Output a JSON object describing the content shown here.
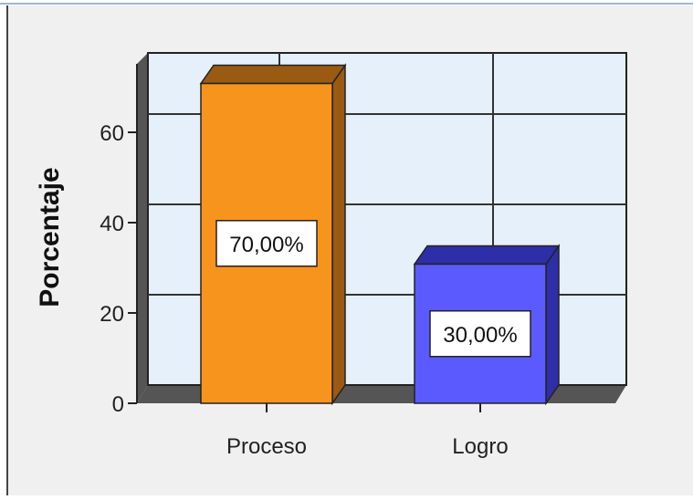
{
  "chart_data": {
    "type": "bar",
    "categories": [
      "Proceso",
      "Logro"
    ],
    "values": [
      70,
      30
    ],
    "data_labels": [
      "70,00%",
      "30,00%"
    ],
    "ylabel": "Porcentaje",
    "xlabel": "",
    "ylim": [
      0,
      70
    ],
    "yticks": [
      0,
      20,
      40,
      60
    ],
    "ytick_labels": [
      "0",
      "20",
      "40",
      "60"
    ],
    "grid": true,
    "bar_colors": [
      "#f7941d",
      "#5a5aff"
    ],
    "bar_side_colors": [
      "#9a5a12",
      "#2e2ea8"
    ],
    "plot_background": "#e6f0fb",
    "frame_background": "#f0f0f0"
  }
}
